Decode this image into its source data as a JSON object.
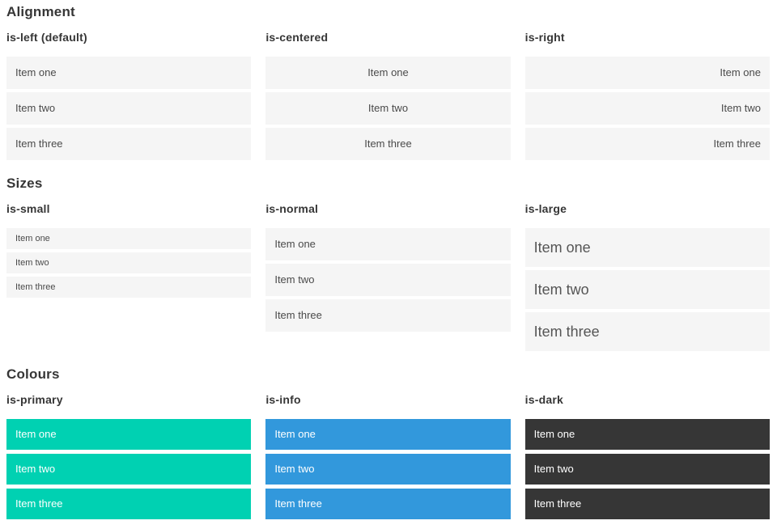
{
  "sections": [
    {
      "title": "Alignment",
      "columns": [
        {
          "heading": "is-left (default)",
          "variant": "is-left",
          "items": [
            "Item one",
            "Item two",
            "Item three"
          ]
        },
        {
          "heading": "is-centered",
          "variant": "is-centered",
          "items": [
            "Item one",
            "Item two",
            "Item three"
          ]
        },
        {
          "heading": "is-right",
          "variant": "is-right",
          "items": [
            "Item one",
            "Item two",
            "Item three"
          ]
        }
      ]
    },
    {
      "title": "Sizes",
      "columns": [
        {
          "heading": "is-small",
          "variant": "is-small",
          "items": [
            "Item one",
            "Item two",
            "Item three"
          ]
        },
        {
          "heading": "is-normal",
          "variant": "is-normal",
          "items": [
            "Item one",
            "Item two",
            "Item three"
          ]
        },
        {
          "heading": "is-large",
          "variant": "is-large",
          "items": [
            "Item one",
            "Item two",
            "Item three"
          ]
        }
      ]
    },
    {
      "title": "Colours",
      "columns": [
        {
          "heading": "is-primary",
          "variant": "is-primary",
          "items": [
            "Item one",
            "Item two",
            "Item three"
          ]
        },
        {
          "heading": "is-info",
          "variant": "is-info",
          "items": [
            "Item one",
            "Item two",
            "Item three"
          ]
        },
        {
          "heading": "is-dark",
          "variant": "is-dark",
          "items": [
            "Item one",
            "Item two",
            "Item three"
          ]
        }
      ]
    }
  ],
  "colors": {
    "primary": "#00d1b2",
    "info": "#3298dc",
    "dark": "#363636",
    "item_bg": "#f5f5f5",
    "item_text": "#4a4a4a",
    "heading_text": "#363636",
    "on_color_text": "#ffffff",
    "page_bg": "#ffffff"
  }
}
